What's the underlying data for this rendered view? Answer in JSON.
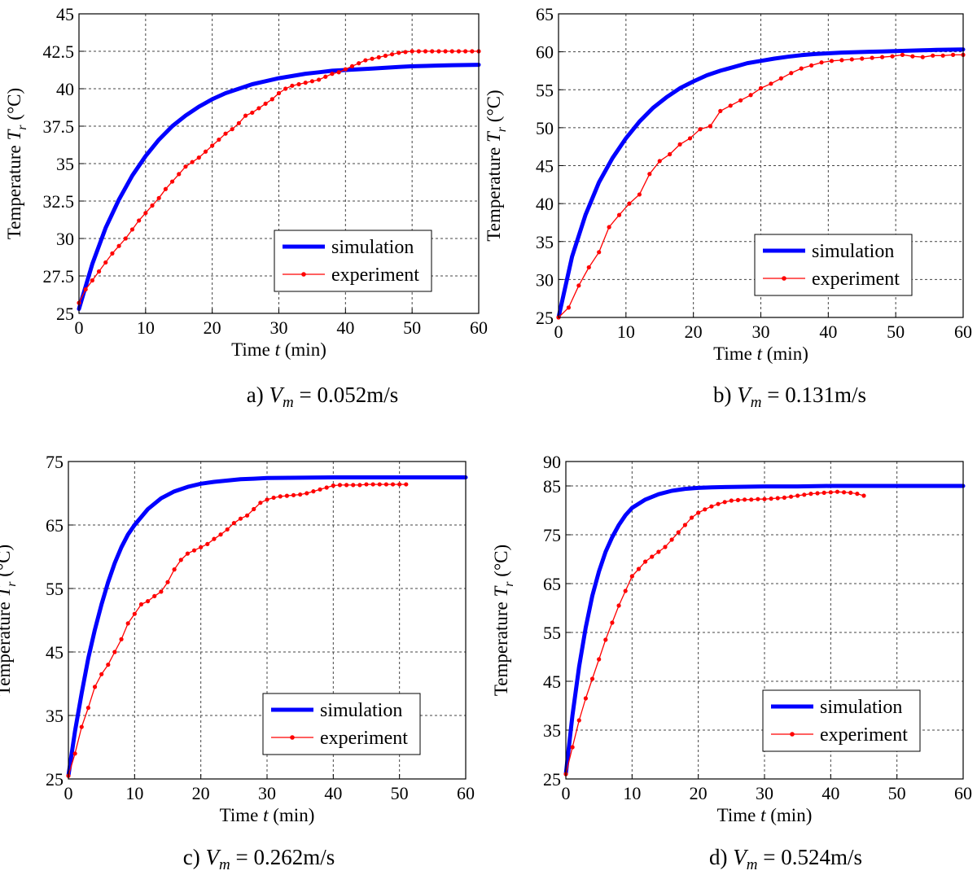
{
  "figure": {
    "panels_count": 4
  },
  "chart_data": [
    {
      "type": "line",
      "caption": {
        "prefix": "a) ",
        "var": "V",
        "sub": "m",
        "suffix": " = 0.052m/s"
      },
      "xlabel": {
        "text": "Time ",
        "var": "t",
        "unit": " (min)"
      },
      "ylabel": {
        "text": "Temperature ",
        "var": "T",
        "sub": "r",
        "unit": " (°C)"
      },
      "xlim": [
        0,
        60
      ],
      "ylim": [
        25,
        45
      ],
      "xticks": [
        0,
        10,
        20,
        30,
        40,
        50,
        60
      ],
      "yticks": [
        25,
        27.5,
        30,
        32.5,
        35,
        37.5,
        40,
        42.5,
        45
      ],
      "ytick_labels": [
        "25",
        "27.5",
        "30",
        "32.5",
        "35",
        "37.5",
        "40",
        "42.5",
        "45"
      ],
      "grid": true,
      "legend_position": "bottom-right",
      "series": [
        {
          "name": "simulation",
          "color": "#0000ff",
          "style": "thick-line",
          "x": [
            0,
            2,
            4,
            6,
            8,
            10,
            12,
            14,
            16,
            18,
            20,
            22,
            24,
            26,
            28,
            30,
            32,
            34,
            36,
            38,
            40,
            42,
            44,
            46,
            48,
            50,
            52,
            54,
            56,
            58,
            60
          ],
          "y": [
            25.3,
            28.3,
            30.7,
            32.6,
            34.2,
            35.5,
            36.6,
            37.5,
            38.2,
            38.8,
            39.3,
            39.7,
            40.0,
            40.3,
            40.5,
            40.7,
            40.85,
            41.0,
            41.1,
            41.2,
            41.25,
            41.3,
            41.35,
            41.4,
            41.45,
            41.5,
            41.52,
            41.55,
            41.57,
            41.58,
            41.6
          ]
        },
        {
          "name": "experiment",
          "color": "#ff0000",
          "style": "line-dot",
          "x": [
            0,
            1,
            2,
            3,
            4,
            5,
            6,
            7,
            8,
            9,
            10,
            11,
            12,
            13,
            14,
            15,
            16,
            17,
            18,
            19,
            20,
            21,
            22,
            23,
            24,
            25,
            26,
            27,
            28,
            29,
            30,
            31,
            32,
            33,
            34,
            35,
            36,
            37,
            38,
            39,
            40,
            41,
            42,
            43,
            44,
            45,
            46,
            47,
            48,
            49,
            50,
            51,
            52,
            53,
            54,
            55,
            56,
            57,
            58,
            59,
            60
          ],
          "y": [
            25.7,
            26.6,
            27.2,
            27.8,
            28.4,
            29.0,
            29.5,
            30.0,
            30.6,
            31.2,
            31.7,
            32.2,
            32.7,
            33.3,
            33.8,
            34.3,
            34.8,
            35.1,
            35.4,
            35.8,
            36.2,
            36.6,
            37.0,
            37.3,
            37.7,
            38.2,
            38.4,
            38.7,
            39.0,
            39.3,
            39.7,
            40.0,
            40.2,
            40.3,
            40.4,
            40.5,
            40.6,
            40.8,
            41.0,
            41.1,
            41.3,
            41.5,
            41.7,
            41.9,
            42.0,
            42.1,
            42.2,
            42.3,
            42.4,
            42.45,
            42.5,
            42.5,
            42.5,
            42.5,
            42.5,
            42.5,
            42.5,
            42.5,
            42.5,
            42.5,
            42.5
          ]
        }
      ]
    },
    {
      "type": "line",
      "caption": {
        "prefix": "b) ",
        "var": "V",
        "sub": "m",
        "suffix": " = 0.131m/s"
      },
      "xlabel": {
        "text": "Time ",
        "var": "t",
        "unit": " (min)"
      },
      "ylabel": {
        "text": "Temperature ",
        "var": "T",
        "sub": "r",
        "unit": " (°C)"
      },
      "xlim": [
        0,
        60
      ],
      "ylim": [
        25,
        65
      ],
      "xticks": [
        0,
        10,
        20,
        30,
        40,
        50,
        60
      ],
      "yticks": [
        25,
        30,
        35,
        40,
        45,
        50,
        55,
        60,
        65
      ],
      "ytick_labels": [
        "25",
        "30",
        "35",
        "40",
        "45",
        "50",
        "55",
        "60",
        "65"
      ],
      "grid": true,
      "legend_position": "bottom-right",
      "series": [
        {
          "name": "simulation",
          "color": "#0000ff",
          "style": "thick-line",
          "x": [
            0,
            2,
            4,
            6,
            8,
            10,
            12,
            14,
            16,
            18,
            20,
            22,
            24,
            26,
            28,
            30,
            32,
            34,
            36,
            38,
            40,
            42,
            44,
            46,
            48,
            50,
            52,
            54,
            56,
            58,
            60
          ],
          "y": [
            25,
            33,
            38.5,
            42.8,
            46.0,
            48.6,
            50.8,
            52.6,
            54.0,
            55.2,
            56.1,
            56.9,
            57.5,
            58.0,
            58.5,
            58.8,
            59.1,
            59.35,
            59.55,
            59.7,
            59.8,
            59.9,
            59.95,
            60.0,
            60.05,
            60.1,
            60.15,
            60.2,
            60.25,
            60.28,
            60.3
          ]
        },
        {
          "name": "experiment",
          "color": "#ff0000",
          "style": "line-dot",
          "x": [
            0,
            1.5,
            3,
            4.5,
            6,
            7.5,
            9,
            10.5,
            12,
            13.5,
            15,
            16.5,
            18,
            19.5,
            21,
            22.5,
            24,
            25.5,
            27,
            28.5,
            30,
            31.5,
            33,
            34.5,
            36,
            37.5,
            39,
            40.5,
            42,
            43.5,
            45,
            46.5,
            48,
            49.5,
            51,
            52.5,
            54,
            55.5,
            57,
            58.5,
            60
          ],
          "y": [
            25,
            26.3,
            29.2,
            31.6,
            33.6,
            36.9,
            38.5,
            40.0,
            41.2,
            43.9,
            45.6,
            46.5,
            47.8,
            48.6,
            49.8,
            50.2,
            52.2,
            52.9,
            53.6,
            54.3,
            55.2,
            55.8,
            56.5,
            57.2,
            57.8,
            58.2,
            58.6,
            58.8,
            58.9,
            59.0,
            59.1,
            59.2,
            59.3,
            59.4,
            59.6,
            59.4,
            59.3,
            59.5,
            59.5,
            59.6,
            59.6
          ]
        }
      ]
    },
    {
      "type": "line",
      "caption": {
        "prefix": "c) ",
        "var": "V",
        "sub": "m",
        "suffix": " = 0.262m/s"
      },
      "xlabel": {
        "text": "Time ",
        "var": "t",
        "unit": " (min)"
      },
      "ylabel": {
        "text": "Temperature ",
        "var": "T",
        "sub": "r",
        "unit": " (°C)"
      },
      "xlim": [
        0,
        60
      ],
      "ylim": [
        25,
        75
      ],
      "xticks": [
        0,
        10,
        20,
        30,
        40,
        50,
        60
      ],
      "yticks": [
        25,
        35,
        45,
        55,
        65,
        75
      ],
      "ytick_labels": [
        "25",
        "35",
        "45",
        "55",
        "65",
        "75"
      ],
      "grid": true,
      "legend_position": "bottom-right",
      "series": [
        {
          "name": "simulation",
          "color": "#0000ff",
          "style": "thick-line",
          "x": [
            0,
            1,
            2,
            3,
            4,
            5,
            6,
            7,
            8,
            9,
            10,
            12,
            14,
            16,
            18,
            20,
            22,
            24,
            26,
            28,
            30,
            35,
            40,
            45,
            50,
            55,
            60
          ],
          "y": [
            25.5,
            32.5,
            38.5,
            44.0,
            48.5,
            52.5,
            56.0,
            59.0,
            61.5,
            63.5,
            65.0,
            67.5,
            69.2,
            70.3,
            71.0,
            71.5,
            71.8,
            72.0,
            72.2,
            72.3,
            72.4,
            72.45,
            72.5,
            72.5,
            72.5,
            72.5,
            72.5
          ]
        },
        {
          "name": "experiment",
          "color": "#ff0000",
          "style": "line-dot",
          "x": [
            0,
            1,
            2,
            3,
            4,
            5,
            6,
            7,
            8,
            9,
            10,
            11,
            12,
            13,
            14,
            15,
            16,
            17,
            18,
            19,
            20,
            21,
            22,
            23,
            24,
            25,
            26,
            27,
            28,
            29,
            30,
            31,
            32,
            33,
            34,
            35,
            36,
            37,
            38,
            39,
            40,
            41,
            42,
            43,
            44,
            45,
            46,
            47,
            48,
            49,
            50,
            51
          ],
          "y": [
            25.5,
            29.0,
            33.2,
            36.2,
            39.5,
            41.5,
            43.0,
            45.0,
            47.0,
            49.5,
            51.0,
            52.5,
            53.0,
            53.8,
            54.5,
            56.0,
            58.0,
            59.5,
            60.5,
            61.0,
            61.5,
            62.0,
            62.8,
            63.5,
            64.3,
            65.3,
            66.0,
            66.5,
            67.5,
            68.5,
            69.0,
            69.3,
            69.5,
            69.6,
            69.7,
            69.8,
            70.0,
            70.3,
            70.6,
            70.9,
            71.2,
            71.3,
            71.3,
            71.3,
            71.3,
            71.4,
            71.4,
            71.4,
            71.4,
            71.4,
            71.4,
            71.4
          ]
        }
      ]
    },
    {
      "type": "line",
      "caption": {
        "prefix": "d) ",
        "var": "V",
        "sub": "m",
        "suffix": " = 0.524m/s"
      },
      "xlabel": {
        "text": "Time ",
        "var": "t",
        "unit": " (min)"
      },
      "ylabel": {
        "text": "Temperature ",
        "var": "T",
        "sub": "r",
        "unit": " (°C)"
      },
      "xlim": [
        0,
        60
      ],
      "ylim": [
        25,
        90
      ],
      "xticks": [
        0,
        10,
        20,
        30,
        40,
        50,
        60
      ],
      "yticks": [
        25,
        35,
        45,
        55,
        65,
        75,
        85,
        90
      ],
      "ytick_labels": [
        "25",
        "35",
        "45",
        "55",
        "65",
        "75",
        "85",
        "90"
      ],
      "grid": true,
      "legend_position": "bottom-right",
      "series": [
        {
          "name": "simulation",
          "color": "#0000ff",
          "style": "thick-line",
          "x": [
            0,
            1,
            2,
            3,
            4,
            5,
            6,
            7,
            8,
            9,
            10,
            12,
            14,
            16,
            18,
            20,
            22,
            25,
            30,
            35,
            40,
            45,
            50,
            55,
            60
          ],
          "y": [
            26,
            38,
            48,
            56,
            62.5,
            67.5,
            71.5,
            74.5,
            77,
            79,
            80.5,
            82.2,
            83.3,
            84.0,
            84.4,
            84.6,
            84.7,
            84.8,
            84.9,
            84.9,
            85.0,
            85.0,
            85.0,
            85.0,
            85.0
          ]
        },
        {
          "name": "experiment",
          "color": "#ff0000",
          "style": "line-dot",
          "x": [
            0,
            1,
            2,
            3,
            4,
            5,
            6,
            7,
            8,
            9,
            10,
            11,
            12,
            13,
            14,
            15,
            16,
            17,
            18,
            19,
            20,
            21,
            22,
            23,
            24,
            25,
            26,
            27,
            28,
            29,
            30,
            31,
            32,
            33,
            34,
            35,
            36,
            37,
            38,
            39,
            40,
            41,
            42,
            43,
            44,
            45
          ],
          "y": [
            26,
            31.5,
            37,
            41.5,
            45.5,
            49.5,
            53.5,
            57,
            60.5,
            63.5,
            66.5,
            68,
            69.5,
            70.5,
            71.5,
            72.5,
            74,
            75.5,
            77,
            78.5,
            79.5,
            80.2,
            80.8,
            81.3,
            81.7,
            82.0,
            82.1,
            82.2,
            82.2,
            82.3,
            82.3,
            82.4,
            82.5,
            82.6,
            82.8,
            83.0,
            83.2,
            83.4,
            83.5,
            83.6,
            83.7,
            83.8,
            83.7,
            83.6,
            83.4,
            83.0
          ]
        }
      ]
    }
  ]
}
